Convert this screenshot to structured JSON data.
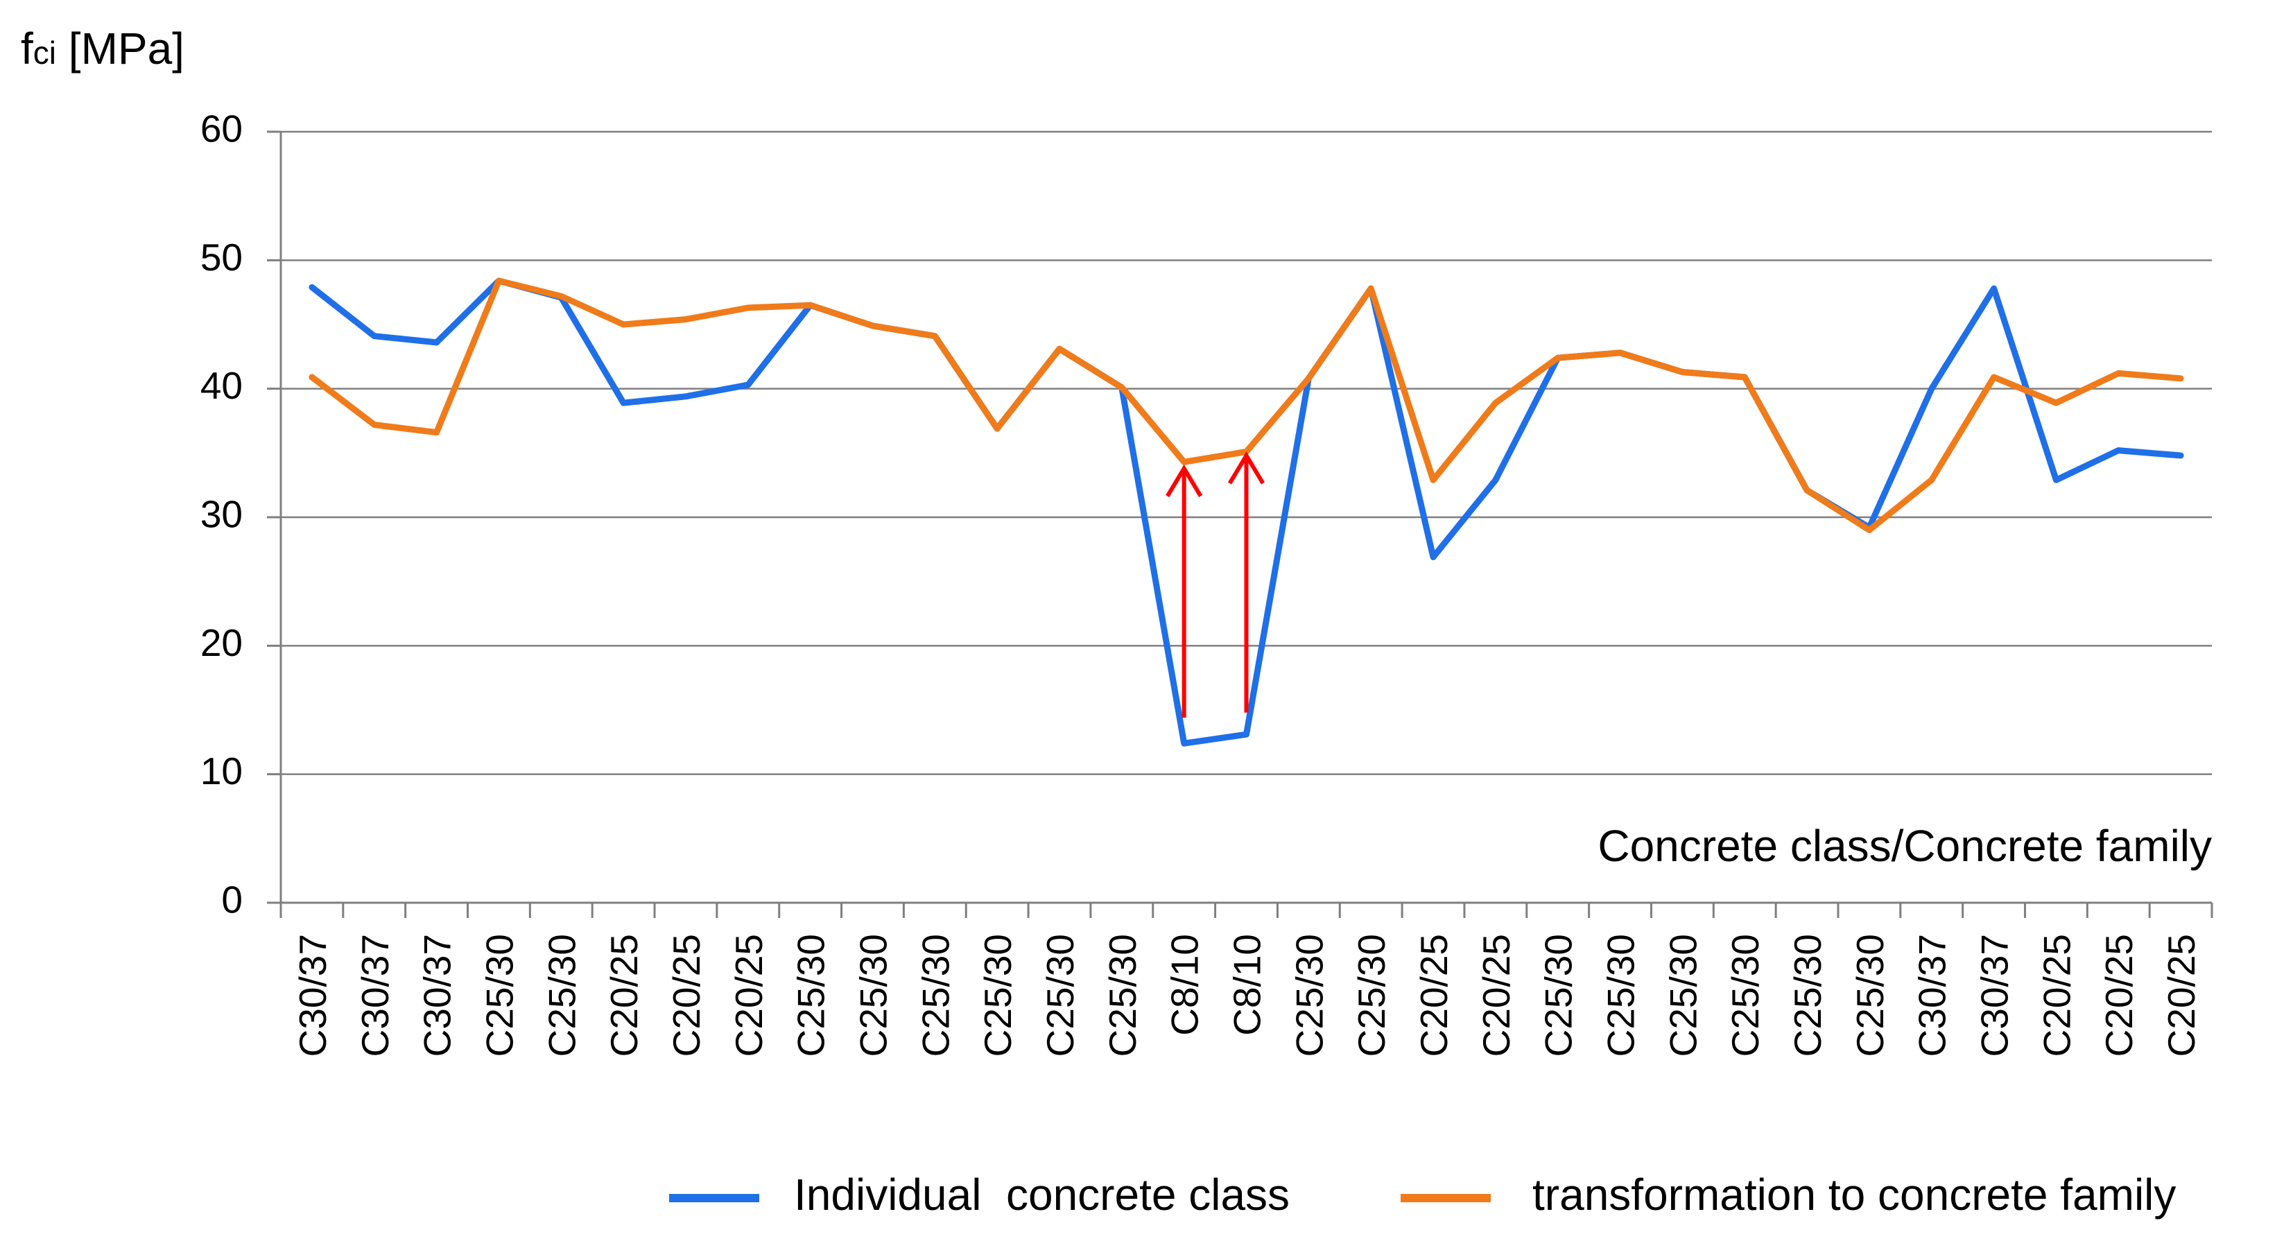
{
  "chart_data": {
    "type": "line",
    "ylabel_main": "f",
    "ylabel_sub": "ci",
    "ylabel_unit": " [MPa]",
    "xlabel": "Concrete class/Concrete family",
    "ylim": [
      0,
      60
    ],
    "yticks": [
      0,
      10,
      20,
      30,
      40,
      50,
      60
    ],
    "grid": true,
    "legend_position": "bottom",
    "categories": [
      "C30/37",
      "C30/37",
      "C30/37",
      "C25/30",
      "C25/30",
      "C20/25",
      "C20/25",
      "C20/25",
      "C25/30",
      "C25/30",
      "C25/30",
      "C25/30",
      "C25/30",
      "C25/30",
      "C8/10",
      "C8/10",
      "C25/30",
      "C25/30",
      "C20/25",
      "C20/25",
      "C25/30",
      "C25/30",
      "C25/30",
      "C25/30",
      "C25/30",
      "C25/30",
      "C30/37",
      "C30/37",
      "C20/25",
      "C20/25",
      "C20/25"
    ],
    "series": [
      {
        "name": "Individual  concrete class",
        "color": "#1f6fe8",
        "values": [
          47.9,
          44.1,
          43.6,
          48.4,
          47.1,
          38.9,
          39.4,
          40.3,
          46.5,
          44.9,
          44.1,
          36.9,
          43.1,
          40.1,
          12.4,
          13.1,
          40.8,
          47.8,
          26.9,
          32.9,
          42.4,
          42.8,
          41.3,
          40.9,
          32.1,
          29.2,
          40.0,
          47.8,
          32.9,
          35.2,
          34.8
        ]
      },
      {
        "name": "transformation to concrete family",
        "color": "#f07b1a",
        "values": [
          40.9,
          37.2,
          36.6,
          48.4,
          47.2,
          45.0,
          45.4,
          46.3,
          46.5,
          44.9,
          44.1,
          36.9,
          43.1,
          40.1,
          34.3,
          35.1,
          40.8,
          47.8,
          32.9,
          38.9,
          42.4,
          42.8,
          41.3,
          40.9,
          32.1,
          29.0,
          32.9,
          40.9,
          38.9,
          41.2,
          40.8
        ]
      }
    ],
    "annotations": [
      {
        "type": "arrow",
        "color": "#ff0000",
        "category_index": 14,
        "from": 14.4,
        "to": 33.8
      },
      {
        "type": "arrow",
        "color": "#ff0000",
        "category_index": 15,
        "from": 14.8,
        "to": 34.8
      }
    ]
  }
}
